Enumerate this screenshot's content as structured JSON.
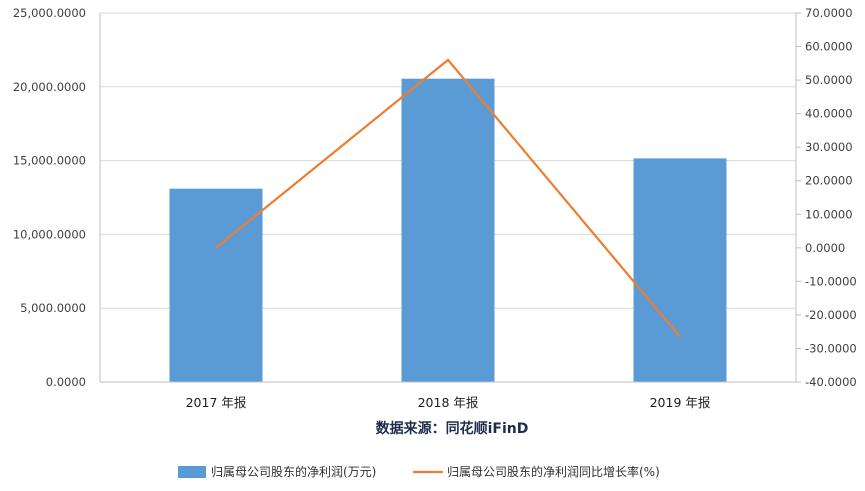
{
  "chart_data": {
    "type": "bar",
    "categories": [
      "2017 年报",
      "2018 年报",
      "2019 年报"
    ],
    "series": [
      {
        "name": "归属母公司股东的净利润(万元)",
        "type": "bar",
        "axis": "left",
        "color": "#5b9bd5",
        "values": [
          13100,
          20550,
          15150
        ]
      },
      {
        "name": "归属母公司股东的净利润同比增长率(%)",
        "type": "line",
        "axis": "right",
        "color": "#ed7d31",
        "values": [
          0.0,
          56.0,
          -26.5
        ]
      }
    ],
    "y_left": {
      "ylim": [
        0,
        25000
      ],
      "ticks": [
        "0.0000",
        "5,000.0000",
        "10,000.0000",
        "15,000.0000",
        "20,000.0000",
        "25,000.0000"
      ]
    },
    "y_right": {
      "ylim": [
        -40,
        70
      ],
      "ticks": [
        "-40.0000",
        "-30.0000",
        "-20.0000",
        "-10.0000",
        "0.0000",
        "10.0000",
        "20.0000",
        "30.0000",
        "40.0000",
        "50.0000",
        "60.0000",
        "70.0000"
      ]
    },
    "grid": true,
    "legend_position": "bottom",
    "source": "数据来源：同花顺iFinD"
  }
}
